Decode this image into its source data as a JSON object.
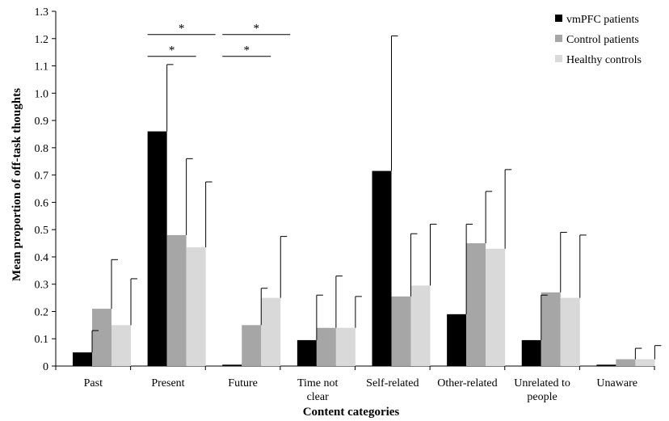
{
  "chart_data": {
    "type": "bar",
    "xlabel": "Content categories",
    "ylabel": "Mean proportion of off-task thoughts",
    "ylim": [
      0,
      1.3
    ],
    "ytick_step": 0.1,
    "yticks": [
      "0",
      "0.1",
      "0.2",
      "0.3",
      "0.4",
      "0.5",
      "0.6",
      "0.7",
      "0.8",
      "0.9",
      "1.0",
      "1.1",
      "1.2",
      "1.3"
    ],
    "grid": false,
    "legend_position": "top-right",
    "categories": [
      [
        "Past"
      ],
      [
        "Present"
      ],
      [
        "Future"
      ],
      [
        "Time not",
        "clear"
      ],
      [
        "Self-related"
      ],
      [
        "Other-related"
      ],
      [
        "Unrelated to",
        "people"
      ],
      [
        "Unaware"
      ]
    ],
    "series": [
      {
        "name": "vmPFC patients",
        "color": "#000000",
        "values": [
          0.05,
          0.86,
          0.005,
          0.095,
          0.715,
          0.19,
          0.095,
          0.005
        ],
        "error": [
          0.08,
          0.245,
          0.0,
          0.165,
          0.495,
          0.33,
          0.165,
          0.0
        ]
      },
      {
        "name": "Control patients",
        "color": "#a6a6a6",
        "values": [
          0.21,
          0.48,
          0.15,
          0.14,
          0.255,
          0.45,
          0.27,
          0.025
        ],
        "error": [
          0.18,
          0.28,
          0.135,
          0.19,
          0.23,
          0.19,
          0.22,
          0.04
        ]
      },
      {
        "name": "Healthy controls",
        "color": "#d9d9d9",
        "values": [
          0.15,
          0.435,
          0.25,
          0.14,
          0.295,
          0.43,
          0.25,
          0.025
        ],
        "error": [
          0.17,
          0.24,
          0.225,
          0.115,
          0.225,
          0.29,
          0.23,
          0.05
        ]
      }
    ],
    "significance": [
      {
        "category": 1,
        "from_series": 0,
        "to_series": 1,
        "y": 1.135,
        "label": "*"
      },
      {
        "category": 1,
        "from_series": 0,
        "to_series": 2,
        "y": 1.215,
        "label": "*"
      },
      {
        "category": 2,
        "from_series": 0,
        "to_series": 1,
        "y": 1.135,
        "label": "*"
      },
      {
        "category": 2,
        "from_series": 0,
        "to_series": 2,
        "y": 1.215,
        "label": "*"
      }
    ]
  }
}
